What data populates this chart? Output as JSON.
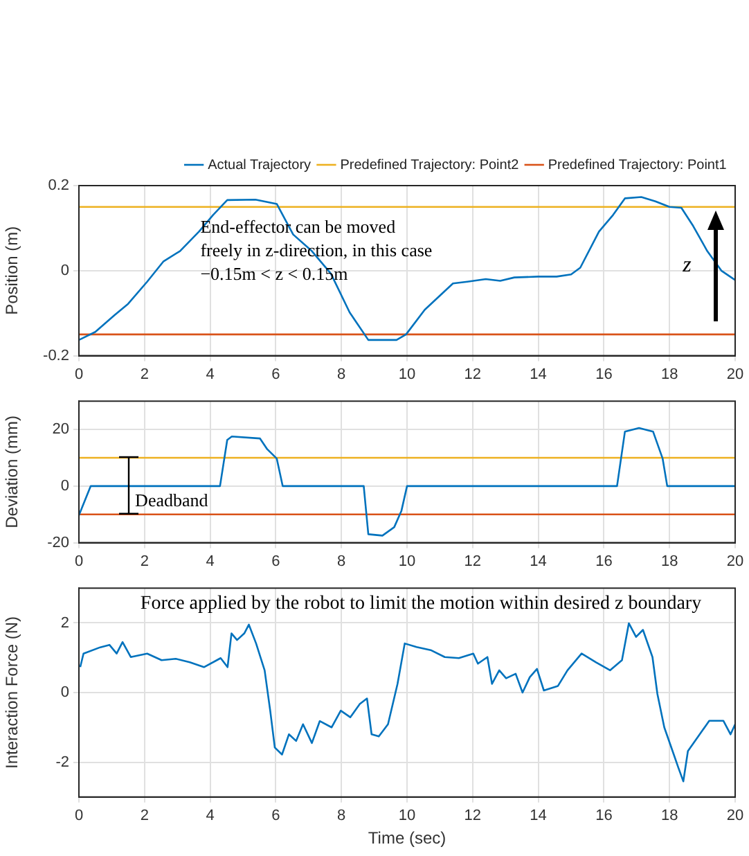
{
  "chart_data": [
    {
      "type": "line",
      "ylabel": "Position (m)",
      "xlim": [
        0,
        20
      ],
      "xticks": [
        0,
        2,
        4,
        6,
        8,
        10,
        12,
        14,
        16,
        18,
        20
      ],
      "ylim": [
        -0.2,
        0.2
      ],
      "yticks": [
        -0.2,
        0,
        0.2
      ],
      "grid": true,
      "legend": "top",
      "marker": "none",
      "line_style": "solid",
      "annotations": [
        "End-effector can be moved freely in z-direction, in this case −0.15m < z < 0.15m",
        "z"
      ],
      "series": [
        {
          "name": "Actual Trajectory",
          "color": "#0072bd",
          "x": [
            0,
            0.5,
            1.08,
            1.5,
            2.08,
            2.58,
            3.08,
            3.66,
            4.09,
            4.52,
            5.38,
            6.03,
            6.53,
            7.1,
            7.68,
            8.25,
            8.82,
            9.68,
            9.97,
            10.54,
            11.4,
            11.84,
            12.4,
            12.84,
            13.27,
            13.99,
            14.56,
            15,
            15.28,
            15.85,
            16.28,
            16.64,
            17.14,
            17.57,
            18,
            18.36,
            18.72,
            19.15,
            19.58,
            20
          ],
          "values": [
            -0.163,
            -0.144,
            -0.105,
            -0.078,
            -0.026,
            0.022,
            0.046,
            0.092,
            0.131,
            0.166,
            0.167,
            0.157,
            0.085,
            0.046,
            -0.007,
            -0.098,
            -0.163,
            -0.163,
            -0.15,
            -0.092,
            -0.03,
            -0.026,
            -0.02,
            -0.024,
            -0.016,
            -0.014,
            -0.014,
            -0.009,
            0.007,
            0.092,
            0.131,
            0.17,
            0.173,
            0.163,
            0.15,
            0.148,
            0.105,
            0.046,
            0,
            -0.022
          ]
        },
        {
          "name": "Predefined Trajectory: Point2",
          "color": "#edb120",
          "x": [
            0,
            20
          ],
          "values": [
            0.15,
            0.15
          ]
        },
        {
          "name": "Predefined Trajectory: Point1",
          "color": "#d95319",
          "x": [
            0,
            20
          ],
          "values": [
            -0.15,
            -0.15
          ]
        }
      ]
    },
    {
      "type": "line",
      "ylabel": "Deviation (mm)",
      "xlim": [
        0,
        20
      ],
      "xticks": [
        0,
        2,
        4,
        6,
        8,
        10,
        12,
        14,
        16,
        18,
        20
      ],
      "ylim": [
        -20,
        30
      ],
      "yticks": [
        -20,
        0,
        20
      ],
      "grid": true,
      "legend": false,
      "marker": "none",
      "line_style": "solid",
      "annotations": [
        {
          "text": "Deadband",
          "x": 1.5,
          "y": 0
        }
      ],
      "ref_lines": [
        {
          "axis": "y",
          "value": 10,
          "color": "#edb120"
        },
        {
          "axis": "y",
          "value": -10,
          "color": "#d95319"
        }
      ],
      "series": [
        {
          "color": "#0072bd",
          "x": [
            0,
            0.36,
            4.3,
            4.52,
            4.66,
            5.52,
            5.74,
            6.03,
            6.21,
            8.68,
            8.82,
            9.25,
            9.61,
            9.83,
            10,
            16.4,
            16.64,
            17.07,
            17.5,
            17.79,
            17.93,
            20
          ],
          "values": [
            -10.3,
            0,
            0,
            16.3,
            17.5,
            16.8,
            13,
            9.7,
            0,
            0,
            -17,
            -17.5,
            -14.5,
            -8.7,
            0,
            0,
            19.2,
            20.5,
            19.2,
            9.7,
            0,
            0
          ]
        }
      ]
    },
    {
      "type": "line",
      "xlabel": "Time (sec)",
      "ylabel": "Interaction Force (N)",
      "xlim": [
        0,
        20
      ],
      "xticks": [
        0,
        2,
        4,
        6,
        8,
        10,
        12,
        14,
        16,
        18,
        20
      ],
      "ylim": [
        -3,
        3
      ],
      "yticks": [
        -2,
        0,
        2
      ],
      "grid": true,
      "legend": false,
      "marker": "none",
      "line_style": "solid",
      "annotations": [
        "Force applied by the robot to limit the motion within desired z boundary"
      ],
      "series": [
        {
          "color": "#0072bd",
          "x": [
            0.04,
            0.14,
            0.65,
            0.93,
            1.15,
            1.33,
            1.58,
            2.08,
            2.52,
            2.95,
            3.38,
            3.81,
            4.32,
            4.53,
            4.65,
            4.82,
            5.04,
            5.18,
            5.4,
            5.66,
            5.83,
            5.97,
            6.19,
            6.4,
            6.62,
            6.83,
            7.1,
            7.34,
            7.7,
            7.98,
            8.27,
            8.56,
            8.78,
            8.92,
            9.14,
            9.42,
            9.71,
            9.93,
            10.29,
            10.72,
            11.15,
            11.58,
            12.02,
            12.16,
            12.45,
            12.59,
            12.81,
            13.02,
            13.31,
            13.52,
            13.74,
            13.96,
            14.17,
            14.6,
            14.89,
            15.32,
            15.76,
            16.19,
            16.55,
            16.76,
            16.98,
            17.19,
            17.48,
            17.63,
            17.84,
            18.13,
            18.27,
            18.42,
            18.56,
            18.92,
            19.21,
            19.64,
            19.86,
            20
          ],
          "values": [
            0.73,
            1.12,
            1.3,
            1.37,
            1.12,
            1.45,
            1.02,
            1.12,
            0.93,
            0.97,
            0.87,
            0.73,
            0.99,
            0.73,
            1.7,
            1.51,
            1.7,
            1.95,
            1.41,
            0.64,
            -0.52,
            -1.58,
            -1.78,
            -1.2,
            -1.39,
            -0.91,
            -1.45,
            -0.82,
            -1,
            -0.52,
            -0.71,
            -0.33,
            -0.17,
            -1.2,
            -1.26,
            -0.91,
            0.25,
            1.41,
            1.31,
            1.22,
            1.02,
            0.99,
            1.12,
            0.83,
            1.02,
            0.25,
            0.64,
            0.41,
            0.54,
            0,
            0.44,
            0.68,
            0.06,
            0.19,
            0.64,
            1.12,
            0.87,
            0.64,
            0.93,
            1.99,
            1.6,
            1.8,
            1.02,
            -0.04,
            -1,
            -1.78,
            -2.16,
            -2.55,
            -1.68,
            -1.2,
            -0.81,
            -0.81,
            -1.2,
            -0.91
          ]
        }
      ]
    }
  ]
}
